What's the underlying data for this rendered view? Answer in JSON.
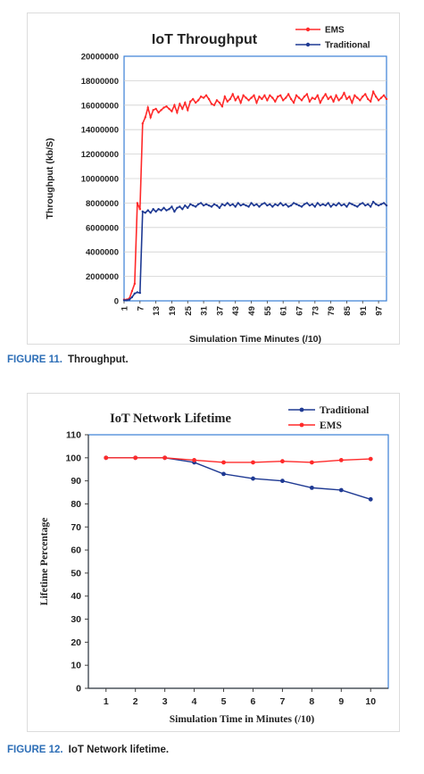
{
  "colors": {
    "ems": "#ff2a2a",
    "traditional": "#1f3a93",
    "axis": "#404040",
    "plot_border": "#3a7fd5",
    "caption_number": "#2e6fb7"
  },
  "figure11": {
    "caption_number": "FIGURE 11.",
    "caption_text": "Throughput.",
    "chart_data": {
      "type": "line",
      "title": "IoT Throughput",
      "xlabel": "Simulation Time Minutes (/10)",
      "ylabel": "Throughput (kb/S)",
      "ylim": [
        0,
        20000000
      ],
      "xlim": [
        1,
        100
      ],
      "yticks": [
        "0",
        "2000000",
        "4000000",
        "6000000",
        "8000000",
        "10000000",
        "12000000",
        "14000000",
        "16000000",
        "18000000",
        "20000000"
      ],
      "xticks": [
        "1",
        "7",
        "13",
        "19",
        "25",
        "31",
        "37",
        "43",
        "49",
        "55",
        "61",
        "67",
        "73",
        "79",
        "85",
        "91",
        "97"
      ],
      "grid": "horizontal",
      "legend": "top-right",
      "series": [
        {
          "name": "EMS",
          "color": "#ff2a2a",
          "values": [
            100000,
            100000,
            200000,
            800000,
            1400000,
            8000000,
            7500000,
            14500000,
            15000000,
            15800000,
            15000000,
            15600000,
            15700000,
            15400000,
            15600000,
            15800000,
            15900000,
            15700000,
            15500000,
            16000000,
            15400000,
            16100000,
            15700000,
            16200000,
            15600000,
            16300000,
            16500000,
            16200000,
            16400000,
            16700000,
            16600000,
            16800000,
            16500000,
            16100000,
            16000000,
            16400000,
            16200000,
            15900000,
            16700000,
            16300000,
            16500000,
            16900000,
            16400000,
            16700000,
            16200000,
            16800000,
            16600000,
            16400000,
            16600000,
            16800000,
            16200000,
            16700000,
            16500000,
            16800000,
            16400000,
            16800000,
            16600000,
            16300000,
            16700000,
            16800000,
            16400000,
            16600000,
            16900000,
            16500000,
            16200000,
            16800000,
            16600000,
            16400000,
            16700000,
            16900000,
            16300000,
            16600000,
            16500000,
            16800000,
            16200000,
            16600000,
            16900000,
            16500000,
            16700000,
            16300000,
            16800000,
            16400000,
            16600000,
            17000000,
            16500000,
            16700000,
            16200000,
            16800000,
            16600000,
            16400000,
            16700000,
            16900000,
            16500000,
            16300000,
            17100000,
            16700000,
            16400000,
            16600000,
            16800000,
            16500000
          ]
        },
        {
          "name": "Traditional",
          "color": "#1f3a93",
          "values": [
            50000,
            50000,
            100000,
            300000,
            600000,
            700000,
            650000,
            7300000,
            7200000,
            7400000,
            7200000,
            7500000,
            7300000,
            7500000,
            7400000,
            7600000,
            7400000,
            7500000,
            7700000,
            7300000,
            7600000,
            7700000,
            7500000,
            7800000,
            7600000,
            7900000,
            7800000,
            7700000,
            7900000,
            8000000,
            7800000,
            7900000,
            7800000,
            7700000,
            7900000,
            7800000,
            7600000,
            7900000,
            7800000,
            8000000,
            7800000,
            7900000,
            7700000,
            8000000,
            7800000,
            7900000,
            7800000,
            7700000,
            8000000,
            7800000,
            7900000,
            7700000,
            7900000,
            8000000,
            7800000,
            7900000,
            7700000,
            7900000,
            7800000,
            8000000,
            7800000,
            7900000,
            7700000,
            7800000,
            8000000,
            7900000,
            7800000,
            7700000,
            7900000,
            8000000,
            7800000,
            7900000,
            7700000,
            8000000,
            7800000,
            7900000,
            7800000,
            8000000,
            7700000,
            7900000,
            7800000,
            8000000,
            7800000,
            7900000,
            7700000,
            8000000,
            7900000,
            7800000,
            7700000,
            7900000,
            8000000,
            7800000,
            7900000,
            7700000,
            8100000,
            7900000,
            7800000,
            7900000,
            8000000,
            7800000
          ]
        }
      ]
    }
  },
  "figure12": {
    "caption_number": "FIGURE 12.",
    "caption_text": "IoT Network lifetime.",
    "chart_data": {
      "type": "line",
      "title": "IoT Network Lifetime",
      "xlabel": "Simulation Time in Minutes (/10)",
      "ylabel": "Lifetime Percentage",
      "ylim": [
        0,
        110
      ],
      "x": [
        1,
        2,
        3,
        4,
        5,
        6,
        7,
        8,
        9,
        10
      ],
      "xticks": [
        "1",
        "2",
        "3",
        "4",
        "5",
        "6",
        "7",
        "8",
        "9",
        "10"
      ],
      "yticks": [
        "0",
        "10",
        "20",
        "30",
        "40",
        "50",
        "60",
        "70",
        "80",
        "90",
        "100",
        "110"
      ],
      "grid": "none",
      "legend": "top-right",
      "series": [
        {
          "name": "Traditional",
          "color": "#1f3a93",
          "values": [
            100,
            100,
            100,
            98,
            93,
            91,
            90,
            87,
            86,
            82
          ]
        },
        {
          "name": "EMS",
          "color": "#ff2a2a",
          "values": [
            100,
            100,
            100,
            99,
            98,
            98,
            98.5,
            98,
            99,
            99.5
          ]
        }
      ]
    }
  }
}
